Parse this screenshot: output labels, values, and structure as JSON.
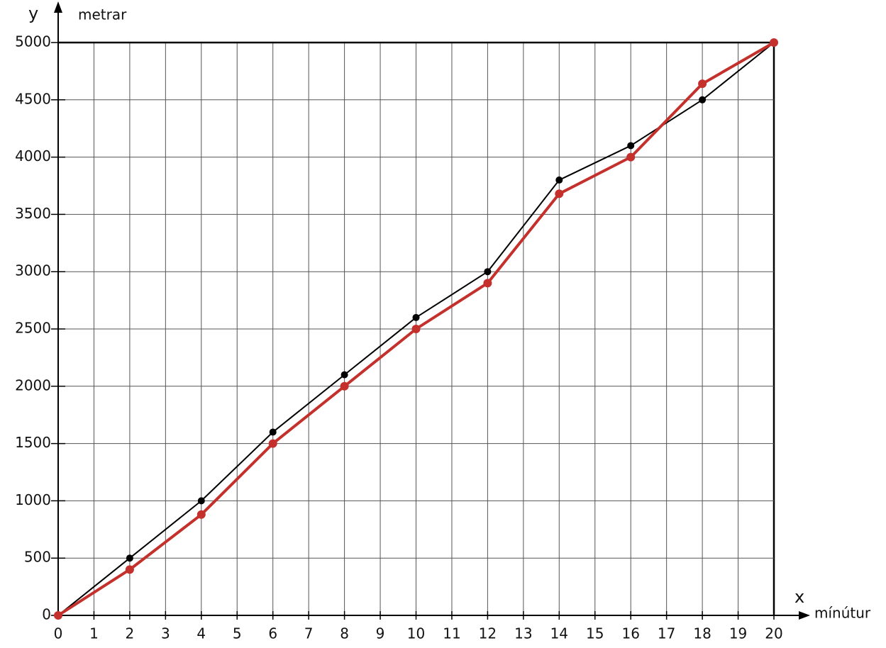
{
  "chart_data": {
    "type": "line",
    "y_label": "y",
    "y_unit": "metrar",
    "x_label": "x",
    "x_unit": "mínútur",
    "x": [
      0,
      2,
      4,
      6,
      8,
      10,
      12,
      14,
      16,
      18,
      20
    ],
    "series": [
      {
        "color": "#000000",
        "values": [
          0,
          500,
          1000,
          1600,
          2100,
          2600,
          3000,
          3800,
          4100,
          4500,
          5000
        ]
      },
      {
        "color": "#c4302b",
        "values": [
          0,
          400,
          880,
          1500,
          2000,
          2500,
          2900,
          3680,
          4000,
          4640,
          5000
        ]
      }
    ],
    "xlim": [
      0,
      20
    ],
    "ylim": [
      0,
      5000
    ],
    "xticks": [
      0,
      1,
      2,
      3,
      4,
      5,
      6,
      7,
      8,
      9,
      10,
      11,
      12,
      13,
      14,
      15,
      16,
      17,
      18,
      19,
      20
    ],
    "yticks": [
      0,
      500,
      1000,
      1500,
      2000,
      2500,
      3000,
      3500,
      4000,
      4500,
      5000
    ],
    "grid": true
  }
}
